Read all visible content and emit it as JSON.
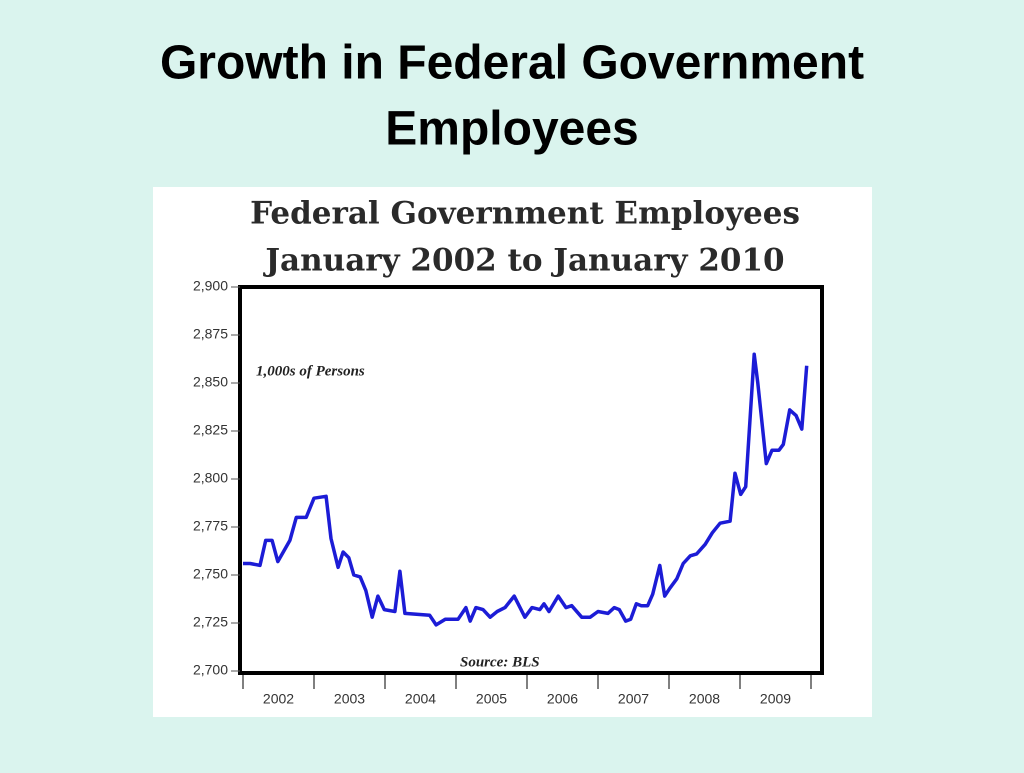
{
  "slide": {
    "title": [
      "Growth in Federal Government",
      "Employees"
    ]
  },
  "chart_data": {
    "type": "line",
    "title": [
      "Federal Government Employees",
      "January 2002 to January 2010"
    ],
    "annotations": [
      "1,000s of Persons",
      "Source: BLS"
    ],
    "color": "#1c1cd6",
    "xlim": [
      2002,
      2010
    ],
    "ylim": [
      2700,
      2900
    ],
    "yticks": [
      {
        "value": 2700,
        "label": "2,700"
      },
      {
        "value": 2725,
        "label": "2,725"
      },
      {
        "value": 2750,
        "label": "2,750"
      },
      {
        "value": 2775,
        "label": "2,775"
      },
      {
        "value": 2800,
        "label": "2,800"
      },
      {
        "value": 2825,
        "label": "2,825"
      },
      {
        "value": 2850,
        "label": "2,850"
      },
      {
        "value": 2875,
        "label": "2,875"
      },
      {
        "value": 2900,
        "label": "2,900"
      }
    ],
    "xticks": [
      {
        "value": 2002.5,
        "label": "2002"
      },
      {
        "value": 2003.5,
        "label": "2003"
      },
      {
        "value": 2004.5,
        "label": "2004"
      },
      {
        "value": 2005.5,
        "label": "2005"
      },
      {
        "value": 2006.5,
        "label": "2006"
      },
      {
        "value": 2007.5,
        "label": "2007"
      },
      {
        "value": 2008.5,
        "label": "2008"
      },
      {
        "value": 2009.5,
        "label": "2009"
      }
    ],
    "xminorticks": [
      2002,
      2003,
      2004,
      2005,
      2006,
      2007,
      2008,
      2009,
      2010
    ],
    "x": [
      2002.0,
      2002.1,
      2002.24,
      2002.32,
      2002.41,
      2002.49,
      2002.66,
      2002.75,
      2002.89,
      2003.0,
      2003.17,
      2003.24,
      2003.34,
      2003.41,
      2003.49,
      2003.56,
      2003.65,
      2003.73,
      2003.82,
      2003.9,
      2003.99,
      2004.14,
      2004.21,
      2004.28,
      2004.63,
      2004.72,
      2004.85,
      2005.03,
      2005.14,
      2005.2,
      2005.28,
      2005.38,
      2005.48,
      2005.58,
      2005.69,
      2005.82,
      2005.97,
      2006.07,
      2006.18,
      2006.24,
      2006.31,
      2006.44,
      2006.55,
      2006.63,
      2006.77,
      2006.89,
      2007.0,
      2007.14,
      2007.23,
      2007.3,
      2007.39,
      2007.46,
      2007.54,
      2007.61,
      2007.7,
      2007.77,
      2007.87,
      2007.94,
      2008.01,
      2008.11,
      2008.2,
      2008.3,
      2008.39,
      2008.51,
      2008.61,
      2008.72,
      2008.86,
      2008.93,
      2009.01,
      2009.08,
      2009.2,
      2009.25,
      2009.37,
      2009.45,
      2009.55,
      2009.61,
      2009.7,
      2009.79,
      2009.87,
      2009.94
    ],
    "values": [
      2756,
      2756,
      2755,
      2768,
      2768,
      2757,
      2768,
      2780,
      2780,
      2790,
      2791,
      2769,
      2754,
      2762,
      2759,
      2750,
      2749,
      2742,
      2728,
      2739,
      2732,
      2731,
      2752,
      2730,
      2729,
      2724,
      2727,
      2727,
      2733,
      2726,
      2733,
      2732,
      2728,
      2731,
      2733,
      2739,
      2728,
      2733,
      2732,
      2735,
      2731,
      2739,
      2733,
      2734,
      2728,
      2728,
      2731,
      2730,
      2733,
      2732,
      2726,
      2727,
      2735,
      2734,
      2734,
      2740,
      2755,
      2739,
      2743,
      2748,
      2756,
      2760,
      2761,
      2766,
      2772,
      2777,
      2778,
      2803,
      2792,
      2796,
      2865,
      2850,
      2808,
      2815,
      2815,
      2818,
      2836,
      2833,
      2826,
      2859
    ]
  }
}
